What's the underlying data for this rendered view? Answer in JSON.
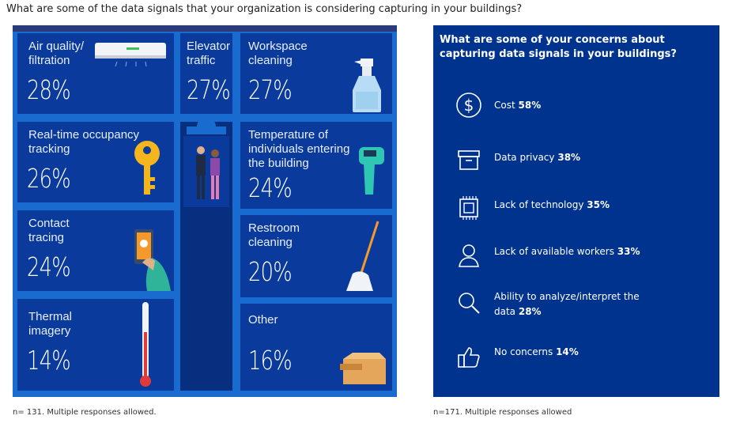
{
  "question": "What are some of the data signals that your organization is considering capturing in your buildings?",
  "left_note": "n= 131. Multiple responses allowed.",
  "right_note": "n=171. Multiple responses allowed",
  "panel_title": "What are some of your concerns about capturing data signals in your buildings?",
  "colors": {
    "building": "#1a6bd0",
    "cell": "#0a3a9c",
    "panel": "#00338d"
  },
  "chart_data": [
    {
      "type": "table",
      "title": "What are some of the data signals that your organization is considering capturing in your buildings?",
      "categories": [
        "Air quality/ filtration",
        "Elevator traffic",
        "Workspace cleaning",
        "Real-time occupancy tracking",
        "Temperature of individuals entering the building",
        "Contact tracing",
        "Restroom cleaning",
        "Thermal imagery",
        "Other"
      ],
      "values": [
        28,
        27,
        27,
        26,
        24,
        24,
        20,
        14,
        16
      ],
      "labels": {
        "air": {
          "name": "Air quality/ filtration",
          "line1": "Air quality/",
          "line2": "filtration",
          "pct": "28%"
        },
        "elevator": {
          "name": "Elevator traffic",
          "line1": "Elevator",
          "line2": "traffic",
          "pct": "27%"
        },
        "workspace": {
          "name": "Workspace cleaning",
          "line1": "Workspace",
          "line2": "cleaning",
          "pct": "27%"
        },
        "occupancy": {
          "name": "Real-time occupancy tracking",
          "line1": "Real-time occupancy",
          "line2": "tracking",
          "pct": "26%"
        },
        "temperature": {
          "name": "Temperature of individuals entering the building",
          "line1": "Temperature of",
          "line2": "individuals entering",
          "line3": "the building",
          "pct": "24%"
        },
        "contact": {
          "name": "Contact tracing",
          "line1": "Contact",
          "line2": "tracing",
          "pct": "24%"
        },
        "restroom": {
          "name": "Restroom cleaning",
          "line1": "Restroom",
          "line2": "cleaning",
          "pct": "20%"
        },
        "thermal": {
          "name": "Thermal imagery",
          "line1": "Thermal",
          "line2": "imagery",
          "pct": "14%"
        },
        "other": {
          "name": "Other",
          "line1": "Other",
          "pct": "16%"
        }
      }
    },
    {
      "type": "table",
      "title": "What are some of your concerns about capturing data signals in your buildings?",
      "categories": [
        "Cost",
        "Data privacy",
        "Lack of technology",
        "Lack of available workers",
        "Ability to analyze/interpret the data",
        "No concerns"
      ],
      "values": [
        58,
        38,
        35,
        33,
        28,
        14
      ],
      "items": [
        {
          "icon": "dollar-icon",
          "text": "Cost",
          "pct": "58%"
        },
        {
          "icon": "archive-box-icon",
          "text": "Data privacy",
          "pct": "38%"
        },
        {
          "icon": "chip-icon",
          "text": "Lack of technology",
          "pct": "35%"
        },
        {
          "icon": "person-icon",
          "text": "Lack of available workers",
          "pct": "33%"
        },
        {
          "icon": "magnifier-icon",
          "text": "Ability to analyze/interpret the",
          "text2": "data",
          "pct": "28%"
        },
        {
          "icon": "thumbs-up-icon",
          "text": "No concerns",
          "pct": "14%"
        }
      ]
    }
  ]
}
